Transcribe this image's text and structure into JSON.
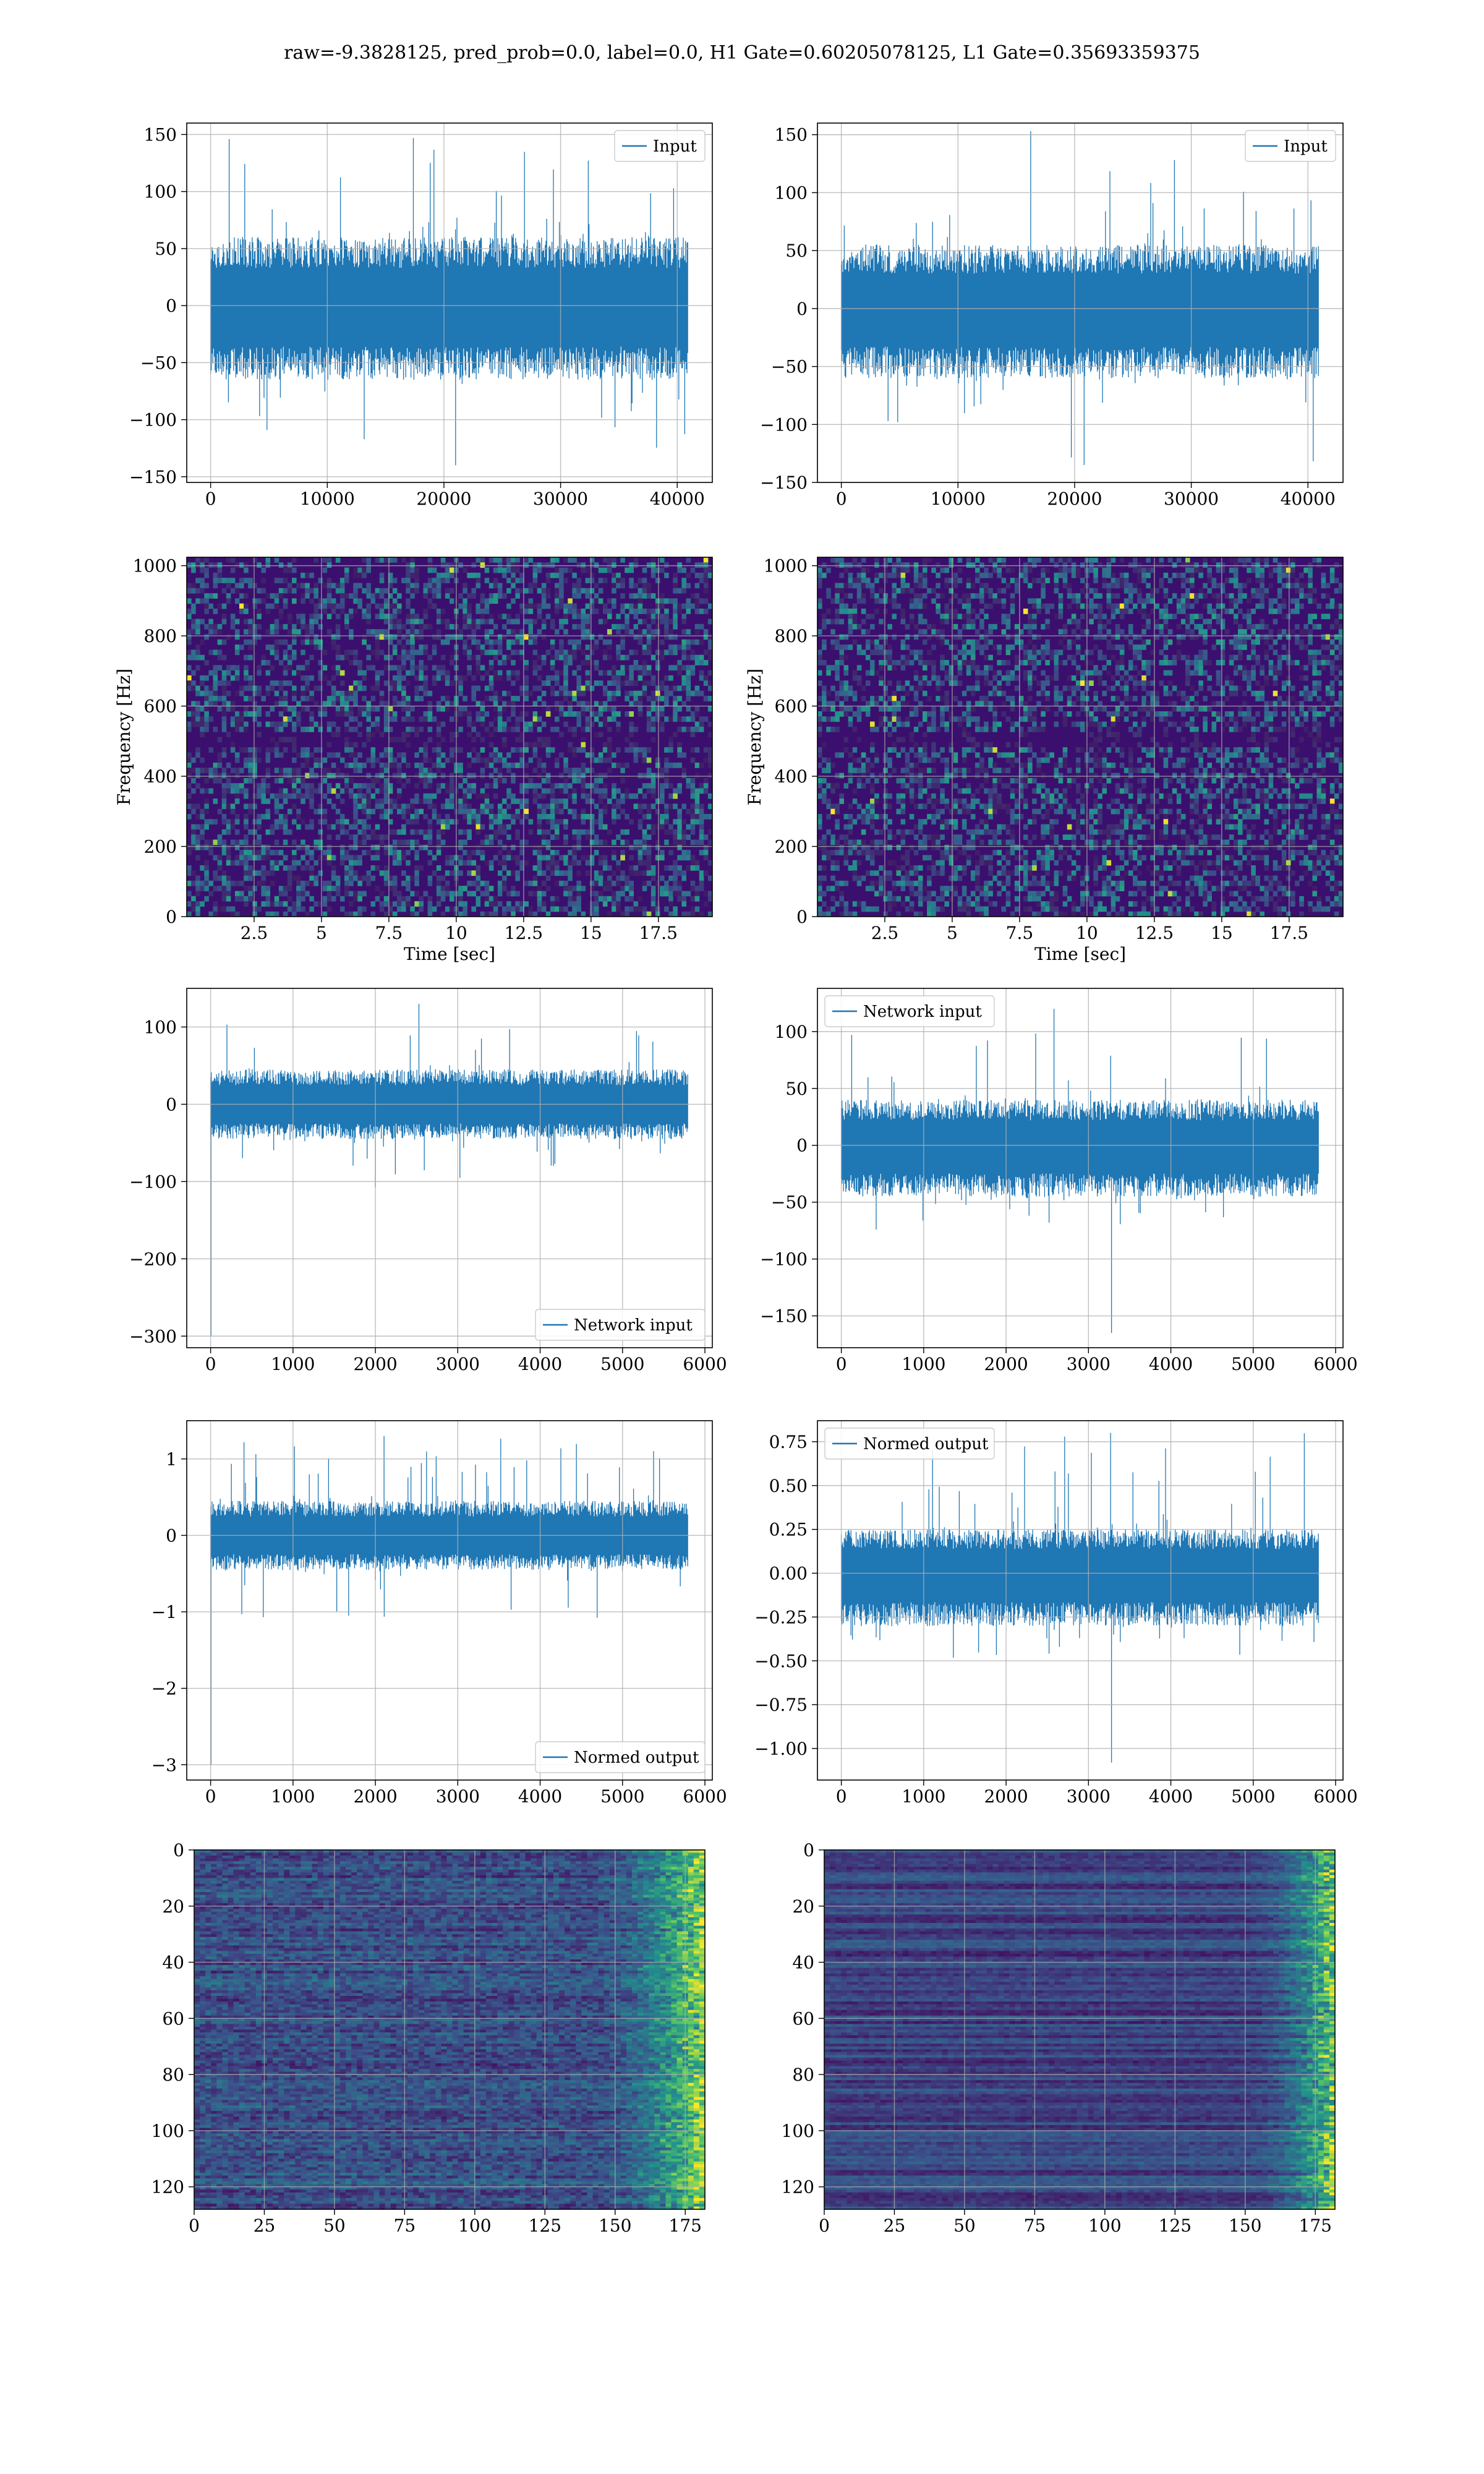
{
  "figure": {
    "suptitle": "raw=-9.3828125, pred_prob=0.0, label=0.0, H1 Gate=0.60205078125, L1 Gate=0.35693359375"
  },
  "colors": {
    "line": "#1f77b4",
    "grid": "#b0b0b0",
    "viridis": [
      "#440154",
      "#3b528b",
      "#21918c",
      "#5ec962",
      "#fde725"
    ]
  },
  "chart_data": [
    {
      "id": "h1-input",
      "type": "line",
      "grid": true,
      "legend": "top-right",
      "series": [
        {
          "name": "Input",
          "n": 40960,
          "mean": 0,
          "band": [
            -65,
            60
          ],
          "spike_max": 147,
          "spike_min": -140
        }
      ],
      "xlim": [
        -2048,
        43008
      ],
      "ylim": [
        -155,
        160
      ],
      "xticks": [
        0,
        10000,
        20000,
        30000,
        40000
      ],
      "yticks": [
        -150,
        -100,
        -50,
        0,
        50,
        100,
        150
      ],
      "xlabel": "",
      "ylabel": ""
    },
    {
      "id": "l1-input",
      "type": "line",
      "grid": true,
      "legend": "top-right",
      "series": [
        {
          "name": "Input",
          "n": 40960,
          "mean": 0,
          "band": [
            -60,
            55
          ],
          "spike_max": 153,
          "spike_min": -135
        }
      ],
      "xlim": [
        -2048,
        43008
      ],
      "ylim": [
        -150,
        160
      ],
      "xticks": [
        0,
        10000,
        20000,
        30000,
        40000
      ],
      "yticks": [
        -150,
        -100,
        -50,
        0,
        50,
        100,
        150
      ],
      "xlabel": "",
      "ylabel": ""
    },
    {
      "id": "h1-spectrogram",
      "type": "heatmap",
      "grid": true,
      "xlim": [
        0,
        19.5
      ],
      "ylim": [
        0,
        1024
      ],
      "xticks": [
        2.5,
        5.0,
        7.5,
        10.0,
        12.5,
        15.0,
        17.5
      ],
      "yticks": [
        0,
        200,
        400,
        600,
        800,
        1000
      ],
      "xlabel": "Time [sec]",
      "ylabel": "Frequency [Hz]",
      "colormap": "viridis"
    },
    {
      "id": "l1-spectrogram",
      "type": "heatmap",
      "grid": true,
      "xlim": [
        0,
        19.5
      ],
      "ylim": [
        0,
        1024
      ],
      "xticks": [
        2.5,
        5.0,
        7.5,
        10.0,
        12.5,
        15.0,
        17.5
      ],
      "yticks": [
        0,
        200,
        400,
        600,
        800,
        1000
      ],
      "xlabel": "Time [sec]",
      "ylabel": "Frequency [Hz]",
      "colormap": "viridis"
    },
    {
      "id": "h1-network-input",
      "type": "line",
      "grid": true,
      "legend": "lower-right",
      "series": [
        {
          "name": "Network input",
          "n": 5800,
          "mean": 0,
          "band": [
            -45,
            45
          ],
          "spike_max": 130,
          "spike_min": -300,
          "spike_min_at": 5
        }
      ],
      "xlim": [
        -290,
        6090
      ],
      "ylim": [
        -315,
        150
      ],
      "xticks": [
        0,
        1000,
        2000,
        3000,
        4000,
        5000,
        6000
      ],
      "yticks": [
        -300,
        -200,
        -100,
        0,
        100
      ],
      "xlabel": "",
      "ylabel": ""
    },
    {
      "id": "l1-network-input",
      "type": "line",
      "grid": true,
      "legend": "top-left",
      "series": [
        {
          "name": "Network input",
          "n": 5800,
          "mean": 0,
          "band": [
            -45,
            40
          ],
          "spike_max": 120,
          "spike_min": -165,
          "spike_min_at": 3280
        }
      ],
      "xlim": [
        -290,
        6090
      ],
      "ylim": [
        -178,
        138
      ],
      "xticks": [
        0,
        1000,
        2000,
        3000,
        4000,
        5000,
        6000
      ],
      "yticks": [
        -150,
        -100,
        -50,
        0,
        50,
        100
      ],
      "xlabel": "",
      "ylabel": ""
    },
    {
      "id": "h1-normed-output",
      "type": "line",
      "grid": true,
      "legend": "lower-right",
      "series": [
        {
          "name": "Normed output",
          "n": 5800,
          "mean": 0,
          "band": [
            -0.45,
            0.45
          ],
          "spike_max": 1.3,
          "spike_min": -3.0,
          "spike_min_at": 5
        }
      ],
      "xlim": [
        -290,
        6090
      ],
      "ylim": [
        -3.2,
        1.5
      ],
      "xticks": [
        0,
        1000,
        2000,
        3000,
        4000,
        5000,
        6000
      ],
      "yticks": [
        -3,
        -2,
        -1,
        0,
        1
      ],
      "xlabel": "",
      "ylabel": ""
    },
    {
      "id": "l1-normed-output",
      "type": "line",
      "grid": true,
      "legend": "top-left",
      "series": [
        {
          "name": "Normed output",
          "n": 5800,
          "mean": 0,
          "band": [
            -0.3,
            0.25
          ],
          "spike_max": 0.8,
          "spike_min": -1.08,
          "spike_min_at": 3280
        }
      ],
      "xlim": [
        -290,
        6090
      ],
      "ylim": [
        -1.18,
        0.87
      ],
      "xticks": [
        0,
        1000,
        2000,
        3000,
        4000,
        5000,
        6000
      ],
      "yticks": [
        -1.0,
        -0.75,
        -0.5,
        -0.25,
        0.0,
        0.25,
        0.5,
        0.75
      ],
      "ytick_labels": [
        "−1.00",
        "−0.75",
        "−0.50",
        "−0.25",
        "0.00",
        "0.25",
        "0.50",
        "0.75"
      ],
      "xlabel": "",
      "ylabel": ""
    },
    {
      "id": "h1-features",
      "type": "heatmap",
      "grid": true,
      "rows": 128,
      "cols": 182,
      "xlim": [
        0,
        182
      ],
      "ylim": [
        128,
        0
      ],
      "xticks": [
        0,
        25,
        50,
        75,
        100,
        125,
        150,
        175
      ],
      "yticks": [
        0,
        20,
        40,
        60,
        80,
        100,
        120
      ],
      "xlabel": "",
      "ylabel": "",
      "colormap": "viridis"
    },
    {
      "id": "l1-features",
      "type": "heatmap",
      "grid": true,
      "rows": 128,
      "cols": 182,
      "xlim": [
        0,
        182
      ],
      "ylim": [
        128,
        0
      ],
      "xticks": [
        0,
        25,
        50,
        75,
        100,
        125,
        150,
        175
      ],
      "yticks": [
        0,
        20,
        40,
        60,
        80,
        100,
        120
      ],
      "xlabel": "",
      "ylabel": "",
      "colormap": "viridis"
    }
  ]
}
